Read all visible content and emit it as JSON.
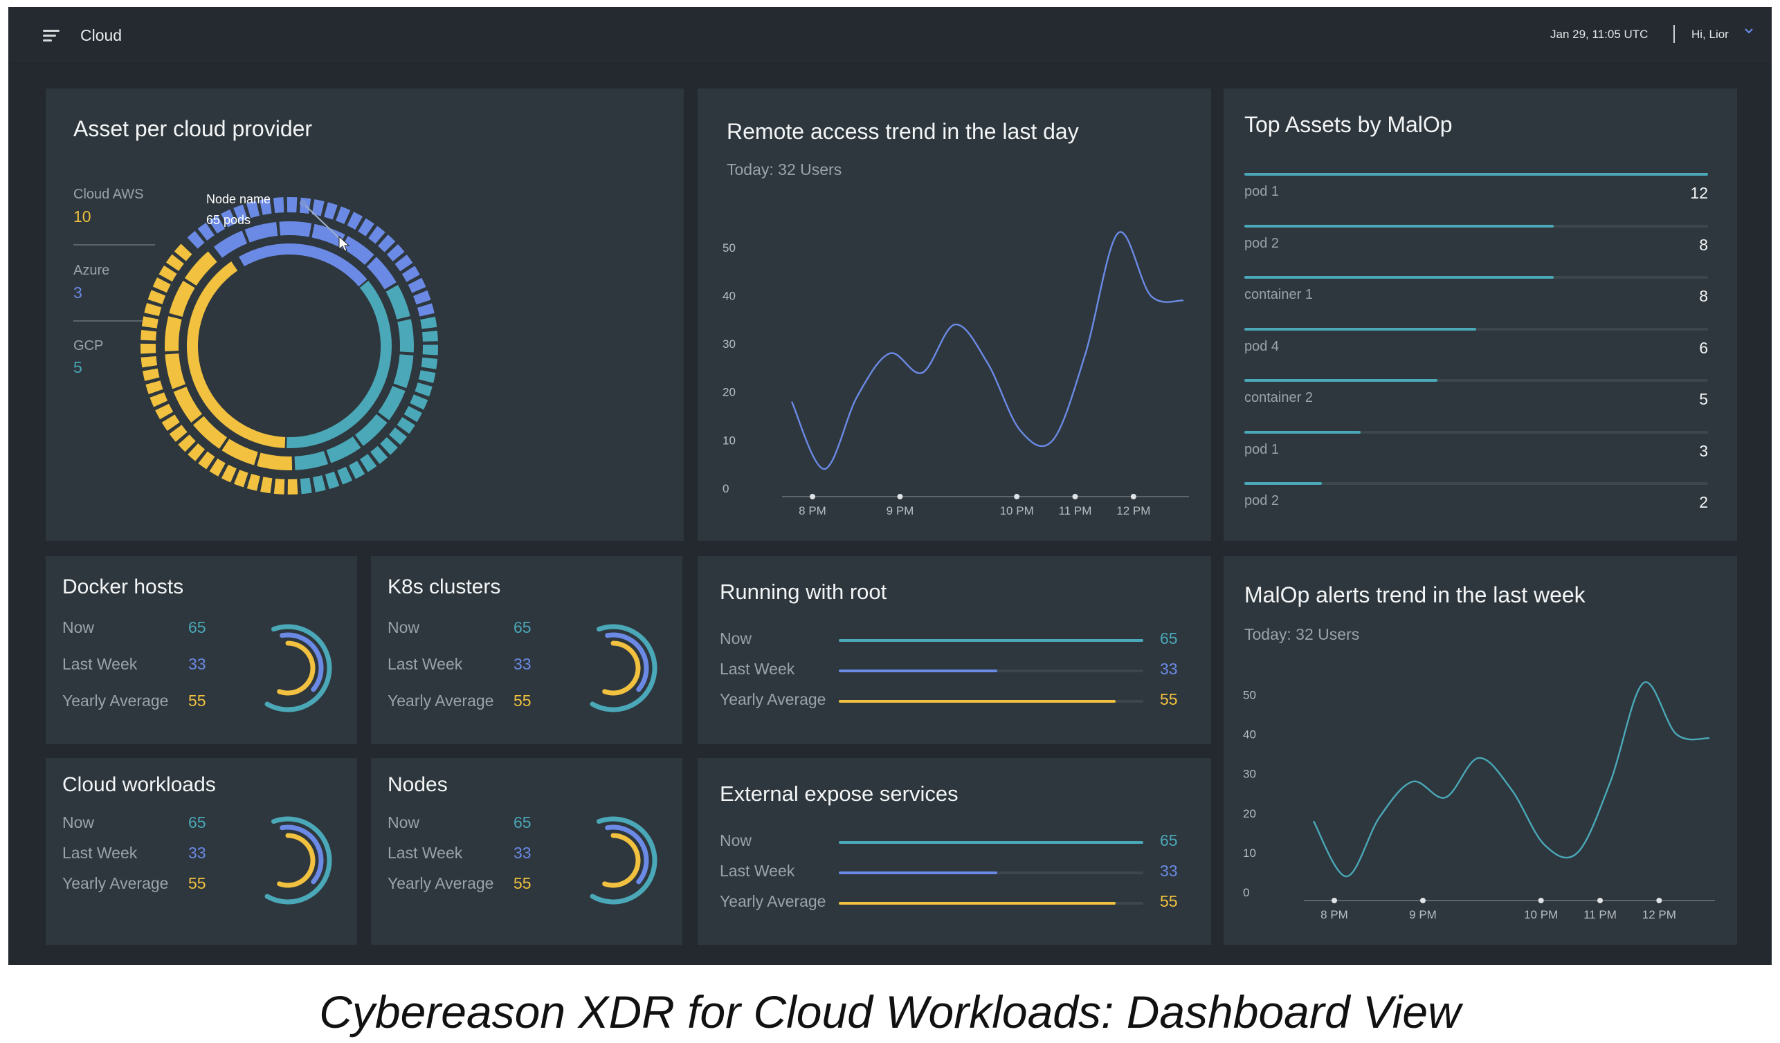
{
  "topbar": {
    "title": "Cloud",
    "datetime": "Jan 29, 11:05 UTC",
    "user": "Hi, Lior"
  },
  "colors": {
    "teal": "#4aa8b8",
    "blue": "#6b8ae6",
    "yellow": "#f1c13f",
    "card": "#2e373d",
    "background": "#23292f"
  },
  "icons": {
    "menu": "menu-icon",
    "user_dropdown": "chevron-down-icon",
    "cursor": "pointer-cursor-icon"
  },
  "asset_provider": {
    "title": "Asset per cloud provider",
    "providers": [
      {
        "name": "Cloud AWS",
        "value": "10"
      },
      {
        "name": "Azure",
        "value": "3"
      },
      {
        "name": "GCP",
        "value": "5"
      }
    ],
    "tooltip": {
      "name": "Node name",
      "detail": "65 pods"
    }
  },
  "remote_access": {
    "title": "Remote access trend in the last day",
    "subtitle": "Today: 32 Users",
    "y_ticks": [
      "50",
      "40",
      "30",
      "20",
      "10",
      "0"
    ],
    "x_ticks": [
      "8 PM",
      "9 PM",
      "10 PM",
      "11 PM",
      "12 PM"
    ]
  },
  "top_assets": {
    "title": "Top Assets by MalOp",
    "max": 12,
    "items": [
      {
        "name": "pod 1",
        "value": 12
      },
      {
        "name": "pod 2",
        "value": 8
      },
      {
        "name": "container 1",
        "value": 8
      },
      {
        "name": "pod 4",
        "value": 6
      },
      {
        "name": "container 2",
        "value": 5
      },
      {
        "name": "pod 1",
        "value": 3
      },
      {
        "name": "pod 2",
        "value": 2
      }
    ]
  },
  "stat_cards": [
    {
      "title": "Docker hosts",
      "rows": [
        {
          "label": "Now",
          "value": "65"
        },
        {
          "label": "Last Week",
          "value": "33"
        },
        {
          "label": "Yearly Average",
          "value": "55"
        }
      ]
    },
    {
      "title": "K8s clusters",
      "rows": [
        {
          "label": "Now",
          "value": "65"
        },
        {
          "label": "Last Week",
          "value": "33"
        },
        {
          "label": "Yearly Average",
          "value": "55"
        }
      ]
    },
    {
      "title": "Cloud workloads",
      "rows": [
        {
          "label": "Now",
          "value": "65"
        },
        {
          "label": "Last Week",
          "value": "33"
        },
        {
          "label": "Yearly Average",
          "value": "55"
        }
      ]
    },
    {
      "title": "Nodes",
      "rows": [
        {
          "label": "Now",
          "value": "65"
        },
        {
          "label": "Last Week",
          "value": "33"
        },
        {
          "label": "Yearly Average",
          "value": "55"
        }
      ]
    }
  ],
  "running_root": {
    "title": "Running with root",
    "rows": [
      {
        "label": "Now",
        "value": "65",
        "fraction": 1.0
      },
      {
        "label": "Last Week",
        "value": "33",
        "fraction": 0.52
      },
      {
        "label": "Yearly Average",
        "value": "55",
        "fraction": 0.91
      }
    ]
  },
  "external_services": {
    "title": "External expose services",
    "rows": [
      {
        "label": "Now",
        "value": "65",
        "fraction": 1.0
      },
      {
        "label": "Last Week",
        "value": "33",
        "fraction": 0.52
      },
      {
        "label": "Yearly Average",
        "value": "55",
        "fraction": 0.91
      }
    ]
  },
  "malop_trend": {
    "title": "MalOp alerts trend in the last week",
    "subtitle": "Today: 32 Users",
    "y_ticks": [
      "50",
      "40",
      "30",
      "20",
      "10",
      "0"
    ],
    "x_ticks": [
      "8 PM",
      "9 PM",
      "10 PM",
      "11 PM",
      "12 PM"
    ]
  },
  "chart_data": [
    {
      "type": "line",
      "title": "Remote access trend in the last day",
      "x": [
        "8 PM",
        "",
        "",
        "9 PM",
        "",
        "",
        "",
        "10 PM",
        "",
        "11 PM",
        "",
        "12 PM",
        ""
      ],
      "y": [
        18,
        4,
        19,
        28,
        24,
        34,
        26,
        12,
        10,
        28,
        53,
        40,
        39
      ],
      "ylim": [
        0,
        55
      ],
      "color": "#6b8ae6"
    },
    {
      "type": "bar",
      "title": "Top Assets by MalOp",
      "categories": [
        "pod 1",
        "pod 2",
        "container 1",
        "pod 4",
        "container 2",
        "pod 1",
        "pod 2"
      ],
      "values": [
        12,
        8,
        8,
        6,
        5,
        3,
        2
      ]
    },
    {
      "type": "line",
      "title": "MalOp alerts trend in the last week",
      "x": [
        "8 PM",
        "",
        "",
        "9 PM",
        "",
        "",
        "",
        "10 PM",
        "",
        "11 PM",
        "",
        "12 PM",
        ""
      ],
      "y": [
        18,
        4,
        19,
        28,
        24,
        34,
        26,
        12,
        10,
        28,
        53,
        40,
        39
      ],
      "ylim": [
        0,
        55
      ],
      "color": "#4aa8b8"
    }
  ],
  "caption": "Cybereason XDR for Cloud Workloads: Dashboard View"
}
